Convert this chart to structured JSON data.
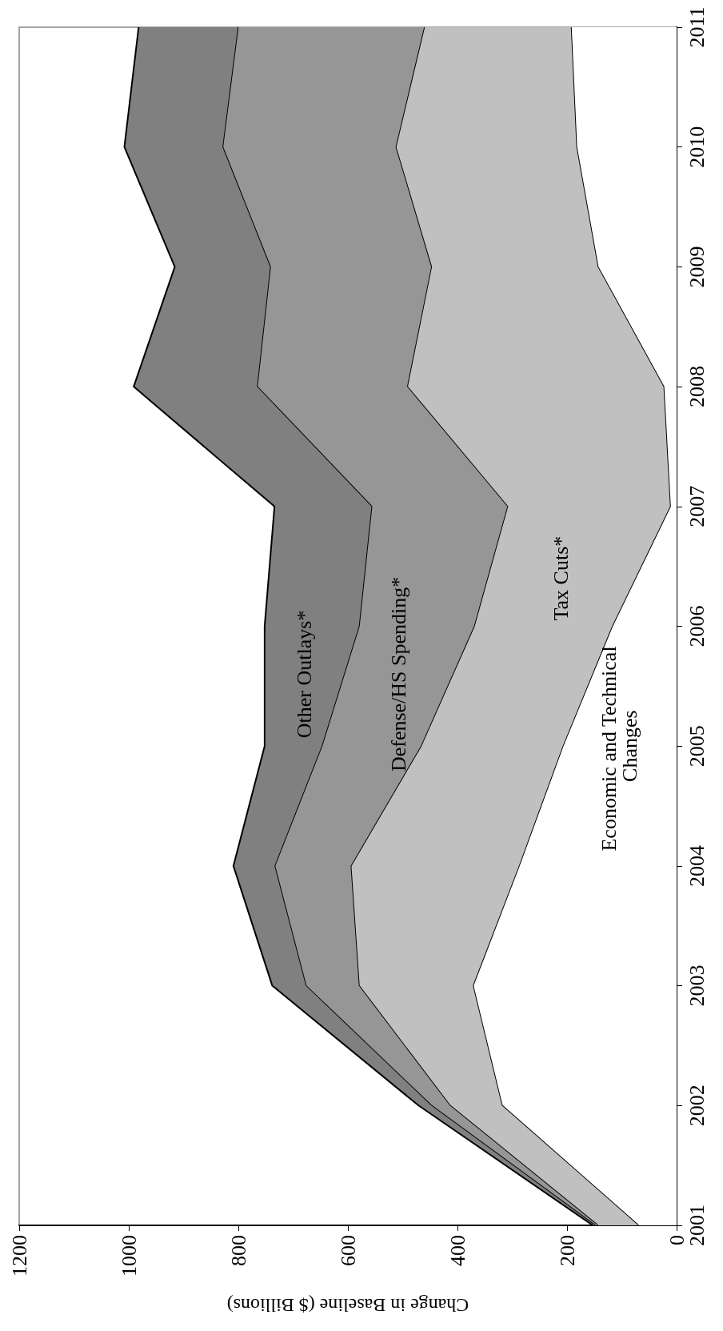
{
  "chart_data": {
    "type": "area",
    "stacked": true,
    "orientation": "horizontal",
    "xlabel": "Change in Baseline ($ Billions)",
    "x": [
      2001,
      2002,
      2003,
      2004,
      2005,
      2006,
      2007,
      2008,
      2009,
      2010,
      2011
    ],
    "ylim": [
      2001,
      2011
    ],
    "yticks": [
      2001,
      2002,
      2003,
      2004,
      2005,
      2006,
      2007,
      2008,
      2009,
      2010,
      2011
    ],
    "xlim": [
      1200,
      0
    ],
    "xticks": [
      0,
      200,
      400,
      600,
      800,
      1000,
      1200
    ],
    "grid": false,
    "legend": false,
    "marker": "none",
    "line_style": "solid",
    "series": [
      {
        "name": "Economic and Technical Changes",
        "color": "#ffffff",
        "values": [
          70,
          319,
          372,
          288,
          208,
          118,
          12,
          24,
          144,
          183,
          193
        ]
      },
      {
        "name": "Tax Cuts*",
        "color": "#c0c0c0",
        "values": [
          74,
          95,
          208,
          307,
          259,
          252,
          297,
          468,
          304,
          330,
          268
        ]
      },
      {
        "name": "Defense/HS Spending*",
        "color": "#969696",
        "values": [
          5,
          34,
          97,
          139,
          181,
          210,
          248,
          274,
          294,
          316,
          340
        ]
      },
      {
        "name": "Other Outlays*",
        "color": "#808080",
        "values": [
          4,
          23,
          61,
          75,
          104,
          172,
          177,
          225,
          174,
          179,
          181
        ]
      }
    ]
  }
}
